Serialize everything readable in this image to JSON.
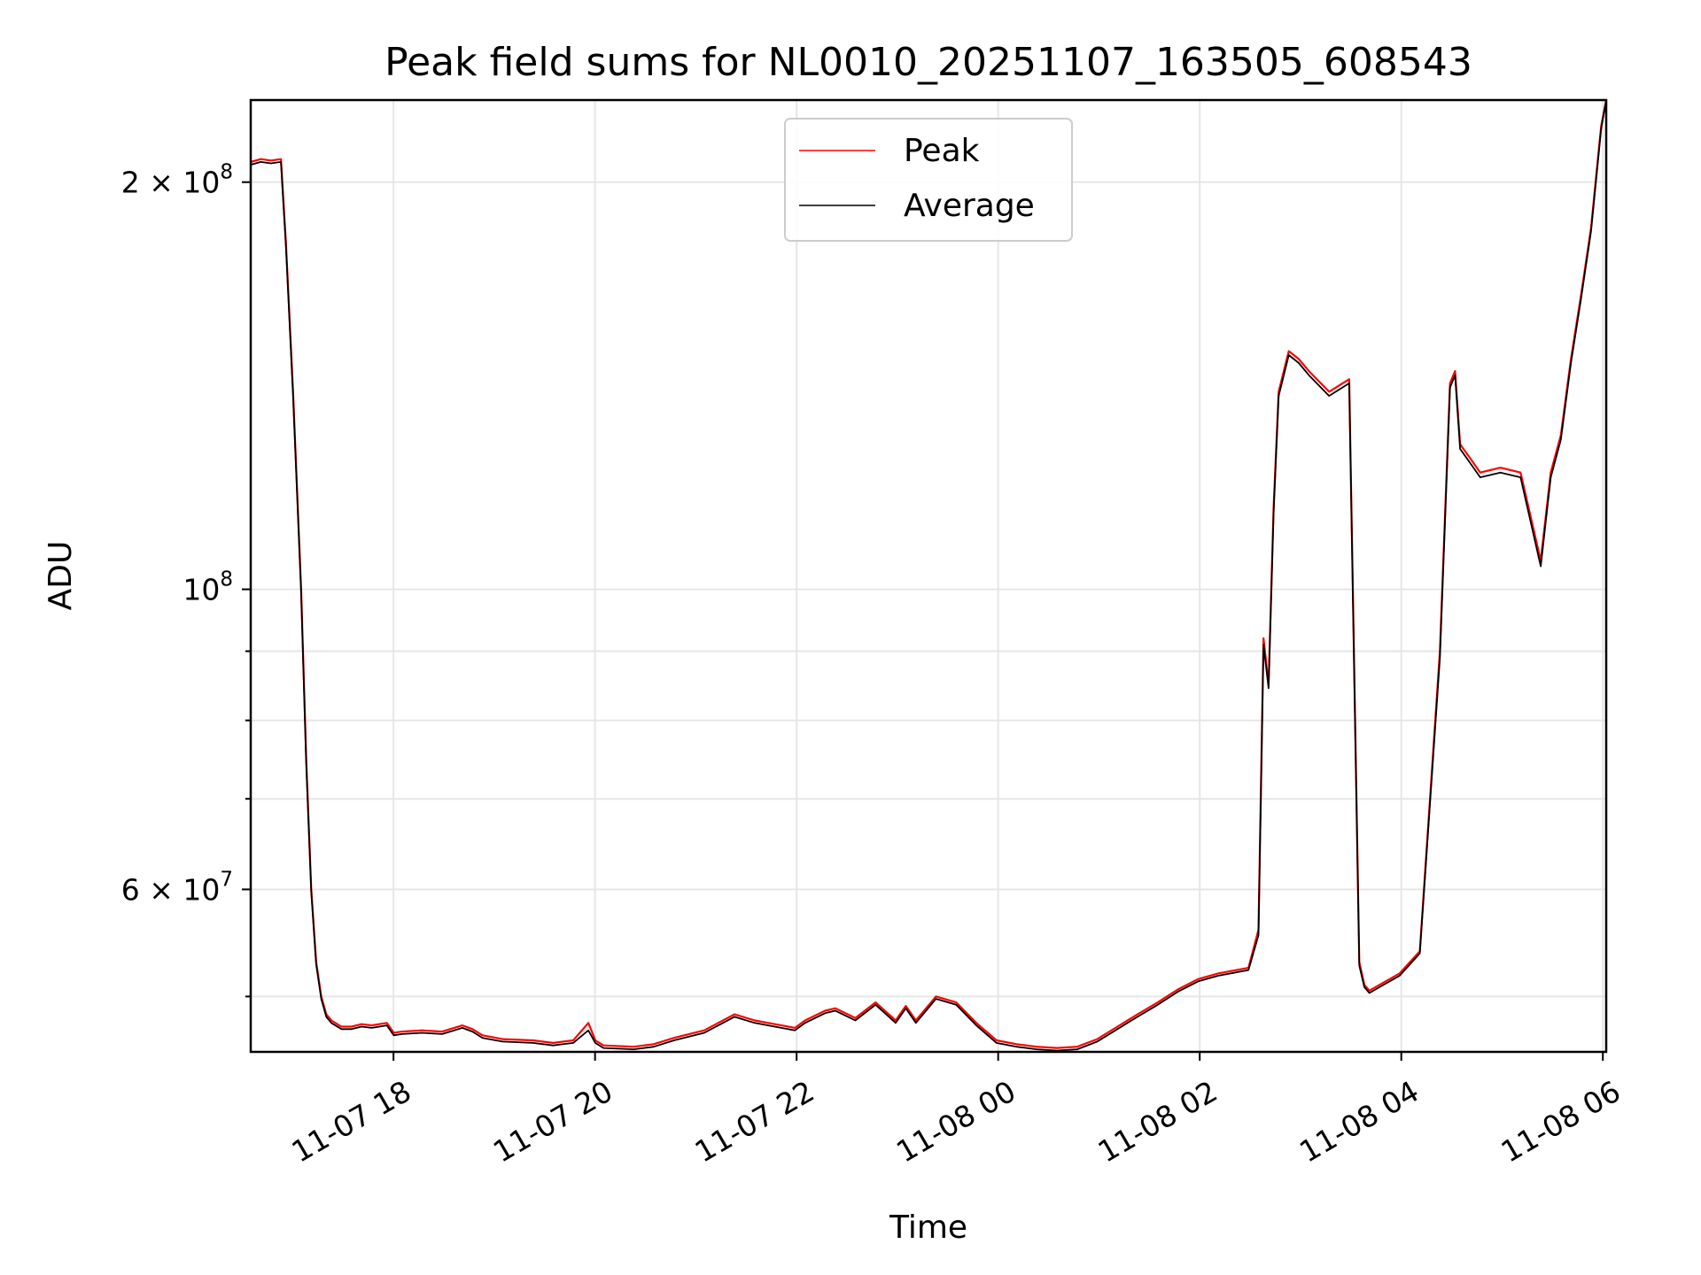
{
  "chart_data": {
    "type": "line",
    "title": "Peak field sums for NL0010_20251107_163505_608543",
    "xlabel": "Time",
    "ylabel": "ADU",
    "yscale": "log",
    "grid": true,
    "legend_position": "upper-center",
    "x_unit": "hours since 11-07 16:35",
    "xlim": [
      0,
      13.45
    ],
    "ylim": [
      45500000,
      230000000
    ],
    "x_ticks": [
      {
        "value": 1.4167,
        "label": "11-07 18"
      },
      {
        "value": 3.4167,
        "label": "11-07 20"
      },
      {
        "value": 5.4167,
        "label": "11-07 22"
      },
      {
        "value": 7.4167,
        "label": "11-08 00"
      },
      {
        "value": 9.4167,
        "label": "11-08 02"
      },
      {
        "value": 11.4167,
        "label": "11-08 04"
      },
      {
        "value": 13.4167,
        "label": "11-08 06"
      }
    ],
    "y_ticks_major": [
      {
        "value": 60000000,
        "mantissa": "6 × 10",
        "exp": "7"
      },
      {
        "value": 100000000,
        "mantissa": "10",
        "exp": "8"
      },
      {
        "value": 200000000,
        "mantissa": "2 × 10",
        "exp": "8"
      }
    ],
    "y_ticks_minor": [
      50000000,
      70000000,
      80000000,
      90000000
    ],
    "series": [
      {
        "name": "Peak",
        "color": "#ff0000",
        "x": [
          0,
          0.1,
          0.2,
          0.3,
          0.35,
          0.42,
          0.5,
          0.55,
          0.6,
          0.65,
          0.7,
          0.75,
          0.8,
          0.9,
          1.0,
          1.1,
          1.2,
          1.35,
          1.42,
          1.5,
          1.7,
          1.9,
          2.1,
          2.2,
          2.3,
          2.5,
          2.8,
          3.0,
          3.2,
          3.35,
          3.42,
          3.5,
          3.8,
          4.0,
          4.2,
          4.5,
          4.8,
          5.0,
          5.2,
          5.4,
          5.5,
          5.7,
          5.8,
          6.0,
          6.2,
          6.4,
          6.5,
          6.6,
          6.8,
          7.0,
          7.2,
          7.4,
          7.6,
          7.8,
          8.0,
          8.2,
          8.4,
          8.6,
          8.8,
          9.0,
          9.2,
          9.4,
          9.6,
          9.9,
          10.0,
          10.05,
          10.1,
          10.15,
          10.2,
          10.3,
          10.4,
          10.5,
          10.7,
          10.9,
          11.0,
          11.05,
          11.1,
          11.2,
          11.4,
          11.6,
          11.8,
          11.9,
          11.95,
          12.0,
          12.1,
          12.2,
          12.4,
          12.6,
          12.8,
          12.9,
          13.0,
          13.1,
          13.2,
          13.3,
          13.4,
          13.45
        ],
        "y": [
          207000000,
          208000000,
          207500000,
          208000000,
          180000000,
          140000000,
          100000000,
          75000000,
          60000000,
          53000000,
          50000000,
          48500000,
          48000000,
          47500000,
          47500000,
          47700000,
          47600000,
          47800000,
          47000000,
          47100000,
          47200000,
          47100000,
          47600000,
          47300000,
          46800000,
          46500000,
          46400000,
          46200000,
          46400000,
          47800000,
          46400000,
          46000000,
          45900000,
          46100000,
          46600000,
          47200000,
          48500000,
          48000000,
          47700000,
          47400000,
          48000000,
          48800000,
          49000000,
          48200000,
          49500000,
          48000000,
          49200000,
          48000000,
          50000000,
          49500000,
          47800000,
          46400000,
          46100000,
          45900000,
          45800000,
          45900000,
          46500000,
          47500000,
          48500000,
          49500000,
          50600000,
          51500000,
          52000000,
          52500000,
          56000000,
          92000000,
          85000000,
          115000000,
          140000000,
          150000000,
          148000000,
          145000000,
          140000000,
          143000000,
          53000000,
          51000000,
          50500000,
          51000000,
          52000000,
          54000000,
          90000000,
          142000000,
          145000000,
          128000000,
          125000000,
          122000000,
          123000000,
          122000000,
          105000000,
          122000000,
          130000000,
          148000000,
          165000000,
          185000000,
          220000000,
          230000000
        ]
      },
      {
        "name": "Average",
        "color": "#000000",
        "x": [
          0,
          0.1,
          0.2,
          0.3,
          0.35,
          0.42,
          0.5,
          0.55,
          0.6,
          0.65,
          0.7,
          0.75,
          0.8,
          0.9,
          1.0,
          1.1,
          1.2,
          1.35,
          1.42,
          1.5,
          1.7,
          1.9,
          2.1,
          2.2,
          2.3,
          2.5,
          2.8,
          3.0,
          3.2,
          3.35,
          3.42,
          3.5,
          3.8,
          4.0,
          4.2,
          4.5,
          4.8,
          5.0,
          5.2,
          5.4,
          5.5,
          5.7,
          5.8,
          6.0,
          6.2,
          6.4,
          6.5,
          6.6,
          6.8,
          7.0,
          7.2,
          7.4,
          7.6,
          7.8,
          8.0,
          8.2,
          8.4,
          8.6,
          8.8,
          9.0,
          9.2,
          9.4,
          9.6,
          9.9,
          10.0,
          10.05,
          10.1,
          10.15,
          10.2,
          10.3,
          10.4,
          10.5,
          10.7,
          10.9,
          11.0,
          11.05,
          11.1,
          11.2,
          11.4,
          11.6,
          11.8,
          11.9,
          11.95,
          12.0,
          12.1,
          12.2,
          12.4,
          12.6,
          12.8,
          12.9,
          13.0,
          13.1,
          13.2,
          13.3,
          13.4,
          13.45
        ],
        "y": [
          206000000,
          207000000,
          206500000,
          207000000,
          179000000,
          139000000,
          99500000,
          74500000,
          59800000,
          52800000,
          49800000,
          48300000,
          47800000,
          47300000,
          47300000,
          47500000,
          47400000,
          47600000,
          46800000,
          46900000,
          47000000,
          46900000,
          47400000,
          47100000,
          46600000,
          46300000,
          46200000,
          46000000,
          46200000,
          47200000,
          46200000,
          45800000,
          45700000,
          45900000,
          46400000,
          47000000,
          48300000,
          47800000,
          47500000,
          47200000,
          47800000,
          48600000,
          48800000,
          48000000,
          49300000,
          47800000,
          49000000,
          47800000,
          49800000,
          49300000,
          47600000,
          46200000,
          45900000,
          45700000,
          45600000,
          45700000,
          46300000,
          47300000,
          48300000,
          49300000,
          50400000,
          51300000,
          51800000,
          52300000,
          55500000,
          91000000,
          84500000,
          114000000,
          139000000,
          149000000,
          147000000,
          144000000,
          139000000,
          142000000,
          52700000,
          50800000,
          50300000,
          50800000,
          51800000,
          53800000,
          89000000,
          141000000,
          144000000,
          127000000,
          124000000,
          121000000,
          122000000,
          121000000,
          104000000,
          121000000,
          129000000,
          147000000,
          164000000,
          184000000,
          219000000,
          230000000
        ]
      }
    ]
  }
}
